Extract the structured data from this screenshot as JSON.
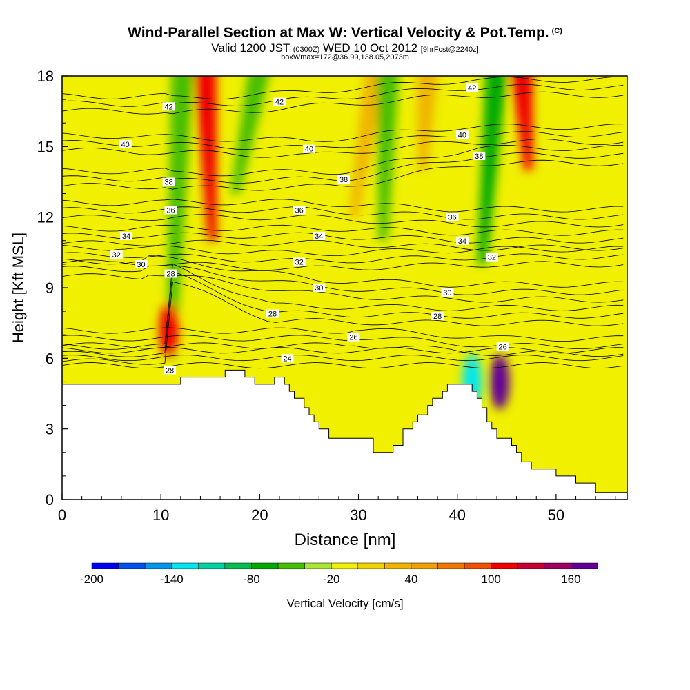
{
  "title": {
    "main": "Wind-Parallel Section at Max W: Vertical Velocity & Pot.Temp.",
    "copyright": "(C)",
    "valid_prefix": "Valid 1200 JST",
    "valid_utc": "(0300Z)",
    "valid_date": "WED 10 Oct 2012",
    "forecast": "[9hrFcst@2240z]",
    "box": "boxWmax=172@36.99,138.05,2073m"
  },
  "chart_data": {
    "type": "heatmap",
    "xlabel": "Distance [nm]",
    "ylabel": "Height [Kft MSL]",
    "xlim": [
      0,
      57.2
    ],
    "ylim": [
      0,
      18
    ],
    "x_ticks": [
      0,
      10,
      20,
      30,
      40,
      50
    ],
    "y_ticks": [
      0,
      3,
      6,
      9,
      12,
      15,
      18
    ],
    "background_color": "#f0f000",
    "colorbar": {
      "label": "Vertical Velocity [cm/s]",
      "tick_labels": [
        -200,
        -140,
        -80,
        -20,
        40,
        100,
        160
      ],
      "bins": [
        {
          "from": -200,
          "to": -180,
          "color": "#0000f0"
        },
        {
          "from": -180,
          "to": -160,
          "color": "#0050f0"
        },
        {
          "from": -160,
          "to": -140,
          "color": "#0096f0"
        },
        {
          "from": -140,
          "to": -120,
          "color": "#00e6f0"
        },
        {
          "from": -120,
          "to": -100,
          "color": "#00d2a0"
        },
        {
          "from": -100,
          "to": -80,
          "color": "#00be50"
        },
        {
          "from": -80,
          "to": -60,
          "color": "#00aa00"
        },
        {
          "from": -60,
          "to": -40,
          "color": "#46be00"
        },
        {
          "from": -40,
          "to": -20,
          "color": "#aae632"
        },
        {
          "from": -20,
          "to": 0,
          "color": "#f0f000"
        },
        {
          "from": 0,
          "to": 20,
          "color": "#f0d200"
        },
        {
          "from": 20,
          "to": 40,
          "color": "#f0b400"
        },
        {
          "from": 40,
          "to": 60,
          "color": "#f0a000"
        },
        {
          "from": 60,
          "to": 80,
          "color": "#f07800"
        },
        {
          "from": 80,
          "to": 100,
          "color": "#f05000"
        },
        {
          "from": 100,
          "to": 120,
          "color": "#f00000"
        },
        {
          "from": 120,
          "to": 140,
          "color": "#c80032"
        },
        {
          "from": 140,
          "to": 160,
          "color": "#a00064"
        },
        {
          "from": 160,
          "to": 180,
          "color": "#640096"
        }
      ]
    },
    "velocity_features": [
      {
        "type": "plume",
        "x": [
          11,
          12.2
        ],
        "y": [
          6,
          18
        ],
        "value": -60
      },
      {
        "type": "plume",
        "x": [
          15.2,
          14.5
        ],
        "y": [
          11,
          18
        ],
        "value": 100
      },
      {
        "type": "plume",
        "x": [
          17.5,
          20
        ],
        "y": [
          13,
          18
        ],
        "value": -60
      },
      {
        "type": "plume",
        "x": [
          29.5,
          31.8
        ],
        "y": [
          12,
          18
        ],
        "value": 30
      },
      {
        "type": "plume",
        "x": [
          32.5,
          33
        ],
        "y": [
          11,
          18
        ],
        "value": -60
      },
      {
        "type": "plume",
        "x": [
          36.5,
          37
        ],
        "y": [
          14,
          18
        ],
        "value": 30
      },
      {
        "type": "plume",
        "x": [
          42.5,
          44
        ],
        "y": [
          10,
          18
        ],
        "value": -80
      },
      {
        "type": "plume",
        "x": [
          47.2,
          46.5
        ],
        "y": [
          14,
          18
        ],
        "value": 100
      },
      {
        "type": "blob",
        "x": 10.8,
        "y": 7.2,
        "value": 110
      },
      {
        "type": "blob",
        "x": 41.5,
        "y": 5.0,
        "value": -140
      },
      {
        "type": "blob",
        "x": 44.3,
        "y": 5.0,
        "value": 160
      }
    ],
    "theta_contours": [
      {
        "label": "24",
        "x": 22.8,
        "y": 6.0
      },
      {
        "label": "26",
        "x": 29.5,
        "y": 6.9
      },
      {
        "label": "26",
        "x": 44.6,
        "y": 6.5
      },
      {
        "label": "28",
        "x": 10.9,
        "y": 5.5
      },
      {
        "label": "28",
        "x": 21.3,
        "y": 7.9
      },
      {
        "label": "28",
        "x": 38.0,
        "y": 7.8
      },
      {
        "label": "28",
        "x": 11.0,
        "y": 9.6
      },
      {
        "label": "30",
        "x": 8.0,
        "y": 10.0
      },
      {
        "label": "30",
        "x": 26.0,
        "y": 9.0
      },
      {
        "label": "30",
        "x": 39.0,
        "y": 8.8
      },
      {
        "label": "32",
        "x": 5.5,
        "y": 10.4
      },
      {
        "label": "32",
        "x": 24.0,
        "y": 10.1
      },
      {
        "label": "32",
        "x": 43.5,
        "y": 10.3
      },
      {
        "label": "34",
        "x": 6.5,
        "y": 11.2
      },
      {
        "label": "34",
        "x": 26.0,
        "y": 11.2
      },
      {
        "label": "34",
        "x": 40.5,
        "y": 11.0
      },
      {
        "label": "36",
        "x": 11.0,
        "y": 12.3
      },
      {
        "label": "36",
        "x": 24.0,
        "y": 12.3
      },
      {
        "label": "36",
        "x": 39.5,
        "y": 12.0
      },
      {
        "label": "38",
        "x": 10.8,
        "y": 13.5
      },
      {
        "label": "38",
        "x": 28.5,
        "y": 13.6
      },
      {
        "label": "38",
        "x": 42.2,
        "y": 14.6
      },
      {
        "label": "40",
        "x": 6.4,
        "y": 15.1
      },
      {
        "label": "40",
        "x": 25.0,
        "y": 14.9
      },
      {
        "label": "40",
        "x": 40.5,
        "y": 15.5
      },
      {
        "label": "42",
        "x": 10.8,
        "y": 16.7
      },
      {
        "label": "42",
        "x": 22.0,
        "y": 16.9
      },
      {
        "label": "42",
        "x": 41.5,
        "y": 17.5
      }
    ],
    "terrain": [
      [
        0,
        4.9
      ],
      [
        12,
        4.9
      ],
      [
        12,
        5.2
      ],
      [
        16.5,
        5.2
      ],
      [
        16.5,
        5.5
      ],
      [
        18.5,
        5.5
      ],
      [
        18.5,
        5.2
      ],
      [
        19.5,
        5.2
      ],
      [
        19.5,
        4.9
      ],
      [
        21.5,
        4.9
      ],
      [
        21.5,
        5.2
      ],
      [
        22.5,
        5.2
      ],
      [
        22.5,
        4.9
      ],
      [
        23,
        4.9
      ],
      [
        23,
        4.6
      ],
      [
        23.5,
        4.6
      ],
      [
        23.5,
        4.3
      ],
      [
        24.5,
        4.3
      ],
      [
        24.5,
        3.9
      ],
      [
        25,
        3.9
      ],
      [
        25,
        3.6
      ],
      [
        25.5,
        3.6
      ],
      [
        25.5,
        3.3
      ],
      [
        26,
        3.3
      ],
      [
        26,
        3.0
      ],
      [
        27,
        3.0
      ],
      [
        27,
        2.6
      ],
      [
        31.5,
        2.6
      ],
      [
        31.5,
        2.0
      ],
      [
        33.5,
        2.0
      ],
      [
        33.5,
        2.3
      ],
      [
        34.5,
        2.3
      ],
      [
        34.5,
        3.0
      ],
      [
        35.5,
        3.0
      ],
      [
        35.5,
        3.3
      ],
      [
        36,
        3.3
      ],
      [
        36,
        3.6
      ],
      [
        37,
        3.6
      ],
      [
        37,
        4.0
      ],
      [
        37.5,
        4.0
      ],
      [
        37.5,
        4.3
      ],
      [
        38.5,
        4.3
      ],
      [
        38.5,
        4.6
      ],
      [
        39,
        4.6
      ],
      [
        39,
        4.9
      ],
      [
        41.5,
        4.9
      ],
      [
        41.5,
        4.6
      ],
      [
        42,
        4.6
      ],
      [
        42,
        4.3
      ],
      [
        42.5,
        4.3
      ],
      [
        42.5,
        3.9
      ],
      [
        43,
        3.9
      ],
      [
        43,
        3.3
      ],
      [
        43.5,
        3.3
      ],
      [
        43.5,
        3.0
      ],
      [
        44,
        3.0
      ],
      [
        44,
        2.6
      ],
      [
        45.5,
        2.6
      ],
      [
        45.5,
        2.3
      ],
      [
        46,
        2.3
      ],
      [
        46,
        2.0
      ],
      [
        46.5,
        2.0
      ],
      [
        46.5,
        1.6
      ],
      [
        47.5,
        1.6
      ],
      [
        47.5,
        1.3
      ],
      [
        50,
        1.3
      ],
      [
        50,
        1.0
      ],
      [
        52,
        1.0
      ],
      [
        52,
        0.7
      ],
      [
        54,
        0.7
      ],
      [
        54,
        0.3
      ],
      [
        57.2,
        0.3
      ]
    ]
  }
}
